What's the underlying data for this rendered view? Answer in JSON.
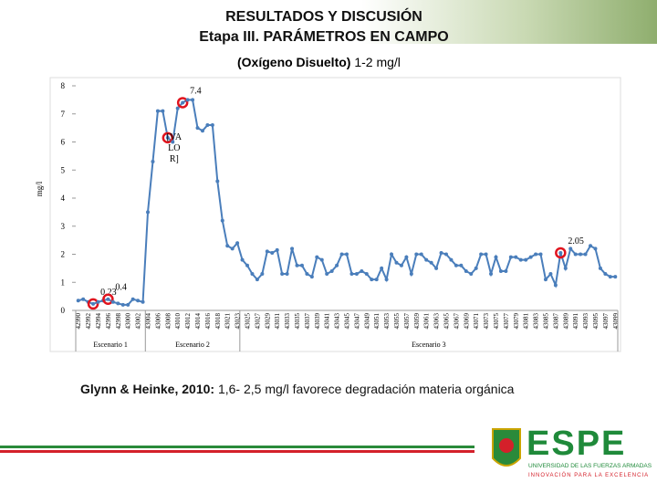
{
  "header": {
    "title": "RESULTADOS Y DISCUSIÓN",
    "subtitle": "Etapa III. PARÁMETROS EN CAMPO"
  },
  "chart_data": {
    "type": "line",
    "title_bold": "(Oxígeno Disuelto)",
    "title_rest": "1-2 mg/l",
    "ylabel": "mg/l",
    "categories": [
      "42990",
      null,
      "42992",
      null,
      "42994",
      null,
      "42996",
      null,
      "42998",
      null,
      "43000",
      null,
      "43002",
      null,
      "43004",
      null,
      "43006",
      null,
      "43008",
      null,
      "43010",
      null,
      "43012",
      null,
      "43014",
      null,
      "43016",
      null,
      "43018",
      null,
      "43021",
      null,
      "43023",
      null,
      "43025",
      null,
      "43027",
      null,
      "43029",
      null,
      "43031",
      null,
      "43033",
      null,
      "43035",
      null,
      "43037",
      null,
      "43039",
      null,
      "43041",
      null,
      "43043",
      null,
      "43045",
      null,
      "43047",
      null,
      "43049",
      null,
      "43051",
      null,
      "43053",
      null,
      "43055",
      null,
      "43057",
      null,
      "43059",
      null,
      "43061",
      null,
      "43063",
      null,
      "43065",
      null,
      "43067",
      null,
      "43069",
      null,
      "43071",
      null,
      "43073",
      null,
      "43075",
      null,
      "43077",
      null,
      "43079",
      null,
      "43081",
      null,
      "43083",
      null,
      "43085",
      null,
      "43087",
      null,
      "43089",
      null,
      "43091",
      null,
      "43093",
      null,
      "43095",
      null,
      "43097",
      null,
      "43099"
    ],
    "values": [
      0.35,
      0.4,
      0.3,
      0.23,
      0.3,
      0.35,
      0.4,
      0.3,
      0.25,
      0.2,
      0.2,
      0.4,
      0.35,
      0.3,
      3.5,
      5.3,
      7.1,
      7.1,
      6.15,
      6.0,
      7.2,
      7.4,
      7.5,
      7.5,
      6.5,
      6.4,
      6.6,
      6.6,
      4.6,
      3.2,
      2.3,
      2.2,
      2.4,
      1.8,
      1.6,
      1.3,
      1.1,
      1.3,
      2.1,
      2.05,
      2.15,
      1.3,
      1.3,
      2.2,
      1.6,
      1.6,
      1.3,
      1.2,
      1.9,
      1.8,
      1.3,
      1.4,
      1.6,
      2.0,
      2.0,
      1.3,
      1.3,
      1.4,
      1.3,
      1.1,
      1.1,
      1.5,
      1.1,
      2.0,
      1.7,
      1.6,
      1.9,
      1.3,
      2.0,
      2.0,
      1.8,
      1.7,
      1.5,
      2.05,
      2.0,
      1.8,
      1.6,
      1.6,
      1.4,
      1.3,
      1.5,
      2.0,
      2.0,
      1.3,
      1.9,
      1.4,
      1.4,
      1.9,
      1.9,
      1.8,
      1.8,
      1.9,
      2.0,
      2.0,
      1.1,
      1.3,
      0.9,
      2.05,
      1.5,
      2.2,
      2.0,
      2.0,
      2.0,
      2.3,
      2.2,
      1.5,
      1.3,
      1.2,
      1.2
    ],
    "value_labels": [
      null,
      null,
      null,
      "0.23",
      null,
      null,
      "0.4",
      null,
      null,
      null,
      null,
      null,
      null,
      null,
      null,
      null,
      null,
      null,
      "[VALOR]",
      null,
      null,
      "7.4",
      null,
      null,
      null,
      null,
      null,
      null,
      null,
      null,
      null,
      null,
      null,
      null,
      null,
      null,
      null,
      null,
      null,
      null,
      null,
      null,
      null,
      null,
      null,
      null,
      null,
      null,
      null,
      null,
      null,
      null,
      null,
      null,
      null,
      null,
      null,
      null,
      null,
      null,
      null,
      null,
      null,
      null,
      null,
      null,
      null,
      null,
      null,
      null,
      null,
      null,
      null,
      null,
      null,
      null,
      null,
      null,
      null,
      null,
      null,
      null,
      null,
      null,
      null,
      null,
      null,
      null,
      null,
      null,
      null,
      null,
      null,
      null,
      null,
      null,
      null,
      "2.05",
      null,
      null,
      null,
      null,
      null,
      null,
      null,
      null,
      null,
      null,
      null
    ],
    "color": "#4a7ebb",
    "highlight_color": "#e0141e",
    "ylim": [
      0,
      8
    ],
    "yticks": [
      0,
      1,
      2,
      3,
      4,
      5,
      6,
      7,
      8
    ],
    "groups": [
      {
        "label": "Escenario 1",
        "start": 0,
        "end": 13
      },
      {
        "label": "Escenario 2",
        "start": 14,
        "end": 32
      },
      {
        "label": "Escenario 3",
        "start": 33,
        "end": 108
      }
    ]
  },
  "footer": {
    "note_bold": "Glynn & Heinke, 2010:",
    "note_rest": "1,6- 2,5 mg/l favorece degradación materia orgánica"
  },
  "logo": {
    "name": "ESPE",
    "line1": "UNIVERSIDAD DE LAS FUERZAS ARMADAS",
    "line2": "INNOVACIÓN PARA LA EXCELENCIA"
  }
}
